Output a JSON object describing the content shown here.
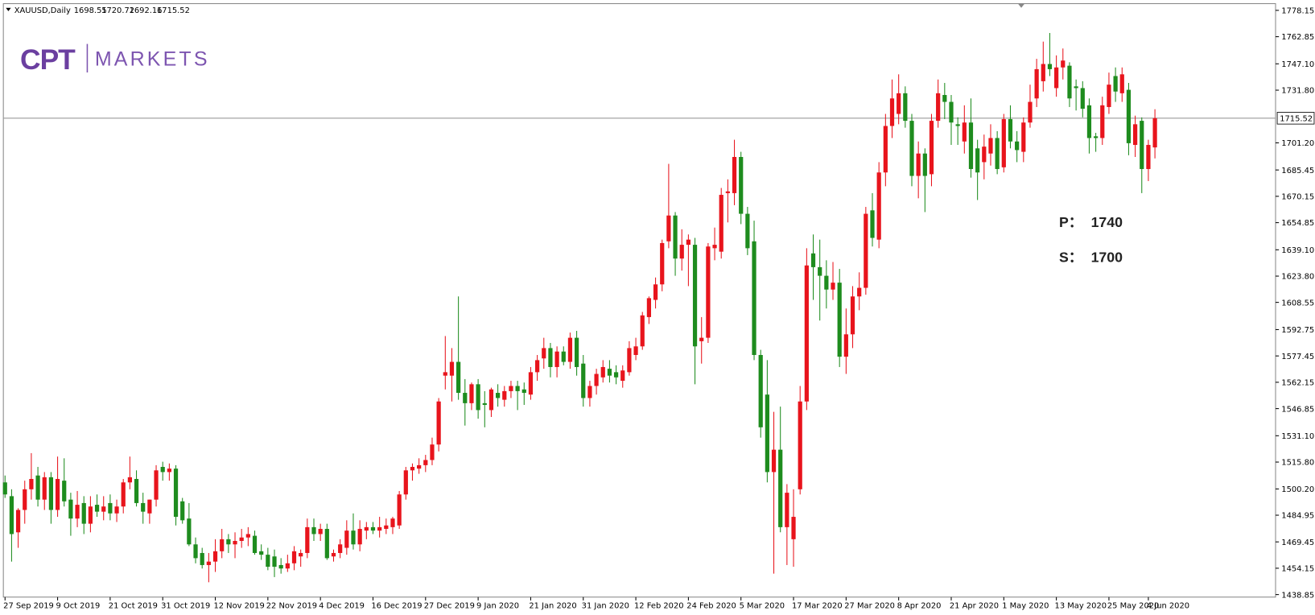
{
  "header": {
    "symbol": "XAUUSD,Daily",
    "ohlc": [
      1698.55,
      1720.72,
      1692.16,
      1715.52
    ]
  },
  "logo": {
    "mark": "CPT",
    "name": "MARKETS"
  },
  "annotations": [
    {
      "label": "P：",
      "value": 1740
    },
    {
      "label": "S：",
      "value": 1700
    }
  ],
  "chart_data": {
    "type": "candlestick",
    "up_color": "#e8141c",
    "down_color": "#1e8c1e",
    "current_price": 1715.52,
    "ylim": [
      1437.39,
      1782.05
    ],
    "yticks": [
      1778.15,
      1762.85,
      {
        "value": 1747.1,
        "label": "1747.10"
      },
      {
        "value": 1731.8,
        "label": "1731.80"
      },
      {
        "value": 1701.2,
        "label": "1701.20"
      },
      1685.45,
      1670.15,
      1654.85,
      {
        "value": 1639.1,
        "label": "1639.10"
      },
      {
        "value": 1623.8,
        "label": "1623.80"
      },
      1608.55,
      1592.75,
      1577.45,
      1562.15,
      1546.85,
      {
        "value": 1531.1,
        "label": "1531.10"
      },
      {
        "value": 1515.8,
        "label": "1515.80"
      },
      {
        "value": 1500.2,
        "label": "1500.20"
      },
      1484.95,
      1469.45,
      1454.15,
      1438.85
    ],
    "categories": [
      "27 Sep 2019",
      null,
      null,
      null,
      null,
      null,
      null,
      null,
      "9 Oct 2019",
      null,
      null,
      null,
      null,
      null,
      null,
      null,
      "21 Oct 2019",
      null,
      null,
      null,
      null,
      null,
      null,
      null,
      "31 Oct 2019",
      null,
      null,
      null,
      null,
      null,
      null,
      null,
      "12 Nov 2019",
      null,
      null,
      null,
      null,
      null,
      null,
      null,
      "22 Nov 2019",
      null,
      null,
      null,
      null,
      null,
      null,
      null,
      "4 Dec 2019",
      null,
      null,
      null,
      null,
      null,
      null,
      null,
      "16 Dec 2019",
      null,
      null,
      null,
      null,
      null,
      null,
      null,
      "27 Dec 2019",
      null,
      null,
      null,
      null,
      null,
      null,
      null,
      "9 Jan 2020",
      null,
      null,
      null,
      null,
      null,
      null,
      null,
      "21 Jan 2020",
      null,
      null,
      null,
      null,
      null,
      null,
      null,
      "31 Jan 2020",
      null,
      null,
      null,
      null,
      null,
      null,
      null,
      "12 Feb 2020",
      null,
      null,
      null,
      null,
      null,
      null,
      null,
      "24 Feb 2020",
      null,
      null,
      null,
      null,
      null,
      null,
      null,
      "5 Mar 2020",
      null,
      null,
      null,
      null,
      null,
      null,
      null,
      "17 Mar 2020",
      null,
      null,
      null,
      null,
      null,
      null,
      null,
      "27 Mar 2020",
      null,
      null,
      null,
      null,
      null,
      null,
      null,
      "8 Apr 2020",
      null,
      null,
      null,
      null,
      null,
      null,
      null,
      "21 Apr 2020",
      null,
      null,
      null,
      null,
      null,
      null,
      null,
      "1 May 2020",
      null,
      null,
      null,
      null,
      null,
      null,
      null,
      "13 May 2020",
      null,
      null,
      null,
      null,
      null,
      null,
      null,
      "25 May 2020",
      null,
      null,
      null,
      null,
      null,
      "4 Jun 2020",
      null
    ],
    "open": [
      1504,
      1496,
      1475,
      1488,
      1500,
      1508,
      1494,
      1507,
      1488,
      1505,
      1494,
      1483,
      1492,
      1480,
      1491,
      1487,
      1492,
      1486,
      1490,
      1504,
      1506,
      1492,
      1486,
      1494,
      1513,
      1510,
      1512,
      1493,
      1483,
      1468,
      1463,
      1456,
      1458,
      1464,
      1471,
      1468,
      1470,
      1472,
      1473,
      1464,
      1462,
      1461,
      1456,
      1454,
      1457,
      1461,
      1463,
      1478,
      1474,
      1477,
      1461,
      1463,
      1466,
      1476,
      1468,
      1476,
      1478,
      1476,
      1477,
      1478,
      1479,
      1497,
      1511,
      1512,
      1514,
      1517,
      1526,
      1566,
      1566,
      1574,
      1556,
      1550,
      1561,
      1550,
      1546,
      1556,
      1552,
      1557,
      1560,
      1558,
      1555,
      1568,
      1576,
      1582,
      1571,
      1580,
      1574,
      1588,
      1573,
      1553,
      1560,
      1565,
      1570,
      1568,
      1563,
      1568,
      1578,
      1583,
      1600,
      1610,
      1619,
      1644,
      1659,
      1634,
      1642,
      1642,
      1586,
      1588,
      1640,
      1638,
      1672,
      1672,
      1693,
      1660,
      1644,
      1578,
      1555,
      1510,
      1523,
      1478,
      1471,
      1500,
      1551,
      1637,
      1629,
      1624,
      1616,
      1620,
      1577,
      1590,
      1612,
      1617,
      1662,
      1645,
      1684,
      1711,
      1718,
      1730,
      1714,
      1682,
      1695,
      1683,
      1714,
      1729,
      1725,
      1712,
      1702,
      1713,
      1698,
      1690,
      1695,
      1704,
      1687,
      1715,
      1702,
      1696,
      1713,
      1727,
      1737,
      1747,
      1733,
      1745,
      1746,
      1734,
      1733,
      1723,
      1705,
      1704,
      1722,
      1740,
      1730,
      1732,
      1700,
      1714,
      1686,
      1698.55
    ],
    "high": [
      1508,
      1500,
      1489,
      1505,
      1521,
      1513,
      1510,
      1510,
      1519,
      1518,
      1498,
      1499,
      1496,
      1496,
      1497,
      1496,
      1497,
      1494,
      1506,
      1519,
      1511,
      1498,
      1494,
      1514,
      1516,
      1515,
      1514,
      1495,
      1492,
      1472,
      1466,
      1463,
      1471,
      1477,
      1474,
      1475,
      1477,
      1478,
      1476,
      1468,
      1466,
      1465,
      1460,
      1462,
      1467,
      1465,
      1483,
      1483,
      1480,
      1480,
      1465,
      1471,
      1482,
      1486,
      1482,
      1481,
      1481,
      1484,
      1483,
      1484,
      1499,
      1513,
      1515,
      1518,
      1520,
      1530,
      1553,
      1589,
      1582,
      1612,
      1564,
      1562,
      1564,
      1557,
      1559,
      1561,
      1560,
      1563,
      1563,
      1562,
      1571,
      1578,
      1588,
      1585,
      1583,
      1583,
      1591,
      1592,
      1578,
      1563,
      1570,
      1575,
      1575,
      1572,
      1572,
      1586,
      1588,
      1603,
      1612,
      1623,
      1645,
      1689,
      1661,
      1651,
      1648,
      1646,
      1600,
      1643,
      1652,
      1675,
      1680,
      1703,
      1696,
      1664,
      1656,
      1581,
      1575,
      1545,
      1548,
      1503,
      1500,
      1560,
      1640,
      1648,
      1645,
      1633,
      1632,
      1628,
      1605,
      1618,
      1626,
      1664,
      1672,
      1690,
      1718,
      1738,
      1741,
      1734,
      1718,
      1702,
      1698,
      1718,
      1738,
      1736,
      1729,
      1716,
      1723,
      1727,
      1703,
      1706,
      1712,
      1708,
      1718,
      1723,
      1708,
      1716,
      1735,
      1750,
      1760,
      1765,
      1752,
      1756,
      1748,
      1738,
      1737,
      1727,
      1707,
      1728,
      1742,
      1745,
      1745,
      1736,
      1717,
      1716,
      1703,
      1720.72
    ],
    "low": [
      1495,
      1458,
      1466,
      1480,
      1494,
      1490,
      1488,
      1480,
      1484,
      1490,
      1473,
      1478,
      1474,
      1475,
      1484,
      1482,
      1482,
      1481,
      1486,
      1500,
      1490,
      1480,
      1480,
      1490,
      1505,
      1505,
      1479,
      1480,
      1467,
      1457,
      1454,
      1446,
      1452,
      1460,
      1463,
      1460,
      1466,
      1467,
      1462,
      1459,
      1453,
      1449,
      1451,
      1452,
      1453,
      1455,
      1460,
      1470,
      1470,
      1459,
      1458,
      1460,
      1462,
      1465,
      1464,
      1471,
      1474,
      1472,
      1474,
      1474,
      1477,
      1494,
      1505,
      1509,
      1510,
      1514,
      1522,
      1558,
      1551,
      1552,
      1537,
      1546,
      1541,
      1536,
      1542,
      1548,
      1548,
      1553,
      1546,
      1549,
      1552,
      1563,
      1570,
      1565,
      1565,
      1572,
      1570,
      1566,
      1548,
      1548,
      1555,
      1562,
      1562,
      1561,
      1559,
      1566,
      1575,
      1581,
      1596,
      1605,
      1615,
      1640,
      1624,
      1627,
      1618,
      1561,
      1573,
      1585,
      1633,
      1634,
      1655,
      1665,
      1654,
      1636,
      1575,
      1530,
      1504,
      1451,
      1475,
      1456,
      1455,
      1497,
      1546,
      1610,
      1598,
      1605,
      1610,
      1571,
      1567,
      1582,
      1604,
      1613,
      1641,
      1640,
      1676,
      1704,
      1712,
      1710,
      1676,
      1669,
      1661,
      1676,
      1710,
      1715,
      1700,
      1700,
      1695,
      1681,
      1668,
      1680,
      1688,
      1683,
      1684,
      1698,
      1690,
      1690,
      1710,
      1722,
      1731,
      1740,
      1728,
      1738,
      1722,
      1720,
      1716,
      1695,
      1696,
      1700,
      1718,
      1725,
      1725,
      1694,
      1693,
      1672,
      1679,
      1692.16
    ],
    "close": [
      1497,
      1474,
      1488,
      1500,
      1506,
      1494,
      1507,
      1488,
      1506,
      1493,
      1483,
      1491,
      1480,
      1490,
      1487,
      1490,
      1486,
      1490,
      1504,
      1507,
      1492,
      1487,
      1494,
      1511,
      1510,
      1512,
      1484,
      1482,
      1468,
      1460,
      1456,
      1458,
      1464,
      1471,
      1468,
      1470,
      1472,
      1474,
      1463,
      1462,
      1455,
      1455,
      1454,
      1457,
      1464,
      1463,
      1478,
      1474,
      1477,
      1460,
      1463,
      1468,
      1476,
      1468,
      1477,
      1478,
      1476,
      1478,
      1479,
      1483,
      1497,
      1511,
      1513,
      1514,
      1517,
      1526,
      1551,
      1568,
      1574,
      1556,
      1550,
      1561,
      1546,
      1549,
      1558,
      1553,
      1557,
      1560,
      1557,
      1556,
      1568,
      1575,
      1582,
      1571,
      1580,
      1574,
      1588,
      1571,
      1553,
      1560,
      1567,
      1571,
      1566,
      1565,
      1569,
      1582,
      1583,
      1601,
      1611,
      1619,
      1643,
      1659,
      1634,
      1642,
      1645,
      1583,
      1588,
      1641,
      1642,
      1671,
      1673,
      1693,
      1660,
      1640,
      1578,
      1536,
      1510,
      1523,
      1478,
      1498,
      1484,
      1551,
      1630,
      1629,
      1624,
      1616,
      1620,
      1577,
      1590,
      1612,
      1617,
      1660,
      1646,
      1684,
      1711,
      1727,
      1730,
      1714,
      1682,
      1695,
      1682,
      1714,
      1730,
      1725,
      1713,
      1711,
      1713,
      1686,
      1684,
      1699,
      1704,
      1686,
      1715,
      1702,
      1697,
      1713,
      1725,
      1744,
      1747,
      1744,
      1745,
      1749,
      1727,
      1733,
      1721,
      1704,
      1704,
      1723,
      1735,
      1731,
      1741,
      1701,
      1712,
      1686,
      1700,
      1715.52
    ]
  }
}
